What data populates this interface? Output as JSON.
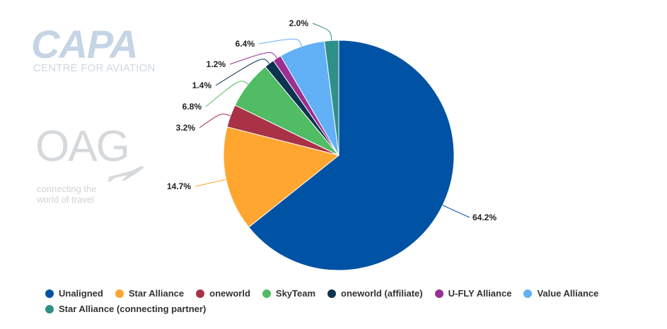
{
  "logos": {
    "capa_word": "CAPA",
    "capa_sub": "CENTRE FOR AVIATION",
    "oag_word": "OAG",
    "oag_tag_line1": "connecting the",
    "oag_tag_line2": "world of travel"
  },
  "chart_data": {
    "type": "pie",
    "title": "",
    "legend_position": "bottom",
    "slices": [
      {
        "name": "Unaligned",
        "value": 64.2,
        "label": "64.2%",
        "color": "#0052a5"
      },
      {
        "name": "Star Alliance",
        "value": 14.7,
        "label": "14.7%",
        "color": "#ffa630"
      },
      {
        "name": "oneworld",
        "value": 3.2,
        "label": "3.2%",
        "color": "#a93246"
      },
      {
        "name": "SkyTeam",
        "value": 6.8,
        "label": "6.8%",
        "color": "#50bc63"
      },
      {
        "name": "oneworld (affiliate)",
        "value": 1.4,
        "label": "1.4%",
        "color": "#0c3350"
      },
      {
        "name": "U-FLY Alliance",
        "value": 1.2,
        "label": "1.2%",
        "color": "#9b2f93"
      },
      {
        "name": "Value Alliance",
        "value": 6.4,
        "label": "6.4%",
        "color": "#62b0f6"
      },
      {
        "name": "Star Alliance (connecting partner)",
        "value": 2.0,
        "label": "2.0%",
        "color": "#2e9088"
      }
    ]
  }
}
